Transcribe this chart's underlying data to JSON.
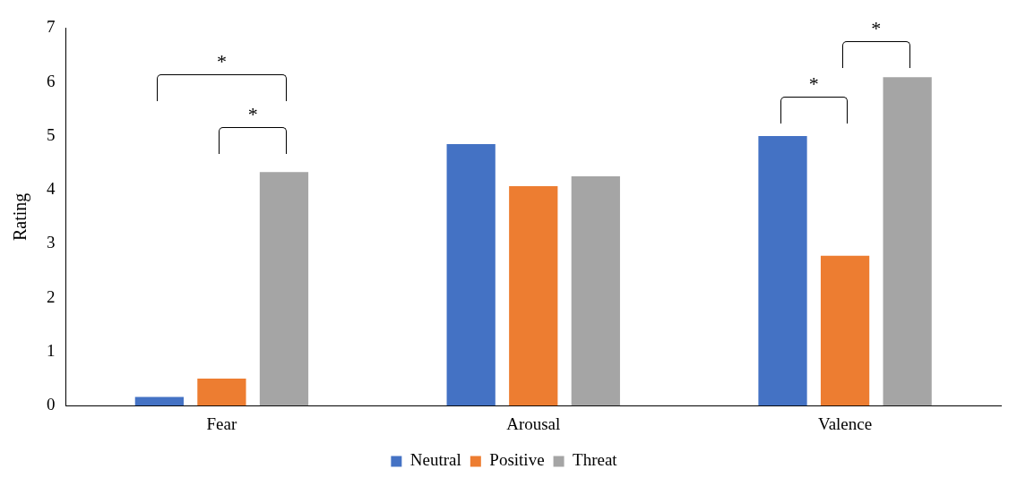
{
  "chart_data": {
    "type": "bar",
    "ylabel": "Rating",
    "categories": [
      "Fear",
      "Arousal",
      "Valence"
    ],
    "series": [
      {
        "name": "Neutral",
        "color": "#4472c4",
        "values": [
          0.16,
          4.85,
          5.0
        ]
      },
      {
        "name": "Positive",
        "color": "#ed7d31",
        "values": [
          0.5,
          4.07,
          2.78
        ]
      },
      {
        "name": "Threat",
        "color": "#a5a5a5",
        "values": [
          4.33,
          4.25,
          6.09
        ]
      }
    ],
    "ylim": [
      0,
      7
    ],
    "yticks": [
      0,
      1,
      2,
      3,
      4,
      5,
      6,
      7
    ],
    "grid": false,
    "legend": "bottom",
    "annotations": [
      "*",
      "*",
      "*",
      "*"
    ]
  }
}
